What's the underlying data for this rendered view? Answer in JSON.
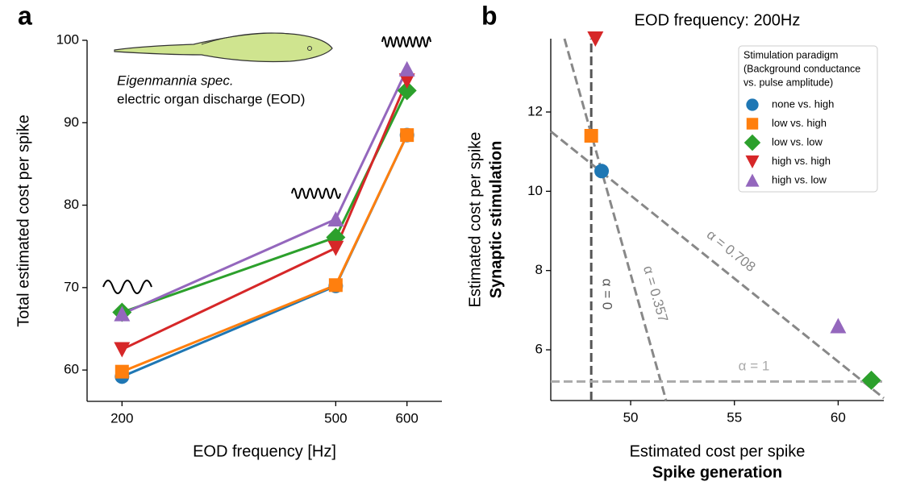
{
  "chart_data": [
    {
      "type": "line",
      "panel_label": "a",
      "xlabel": "EOD frequency [Hz]",
      "ylabel": "Total estimated cost per spike",
      "annotations": [
        "Eigenmannia spec.",
        "electric organ discharge (EOD)"
      ],
      "x": [
        200,
        500,
        600
      ],
      "xlim": [
        151,
        649
      ],
      "ylim": [
        56.2,
        100
      ],
      "xticks": [
        200,
        500,
        600
      ],
      "yticks": [
        60,
        70,
        80,
        90,
        100
      ],
      "grid": false,
      "series": [
        {
          "name": "none vs. high",
          "color": "#1f77b4",
          "marker": "o",
          "values": [
            59.2,
            70.2,
            88.5
          ]
        },
        {
          "name": "low vs. high",
          "color": "#ff7f0e",
          "marker": "s",
          "values": [
            59.8,
            70.3,
            88.5
          ]
        },
        {
          "name": "low vs. low",
          "color": "#2ca02c",
          "marker": "D",
          "values": [
            67.0,
            76.1,
            93.9
          ]
        },
        {
          "name": "high vs. high",
          "color": "#d62728",
          "marker": "v",
          "values": [
            62.5,
            74.8,
            95.1
          ]
        },
        {
          "name": "high vs. low",
          "color": "#9467bd",
          "marker": "^",
          "values": [
            66.8,
            78.3,
            96.5
          ]
        }
      ]
    },
    {
      "type": "scatter",
      "panel_label": "b",
      "title": "EOD frequency: 200Hz",
      "xlabel": [
        "Estimated cost per spike",
        "Spike generation"
      ],
      "ylabel": [
        "Estimated cost per spike",
        "Synaptic stimulation"
      ],
      "legend_title": [
        "Stimulation paradigm",
        "(Background conductance",
        "vs. pulse amplitude)"
      ],
      "legend": "upper right",
      "xlim": [
        46.15,
        62.2
      ],
      "ylim": [
        4.72,
        13.85
      ],
      "xticks": [
        50,
        55,
        60
      ],
      "yticks": [
        6,
        8,
        10,
        12
      ],
      "grid": false,
      "series": [
        {
          "name": "none vs. high",
          "color": "#1f77b4",
          "marker": "o",
          "x": [
            48.6
          ],
          "y": [
            10.51
          ]
        },
        {
          "name": "low vs. high",
          "color": "#ff7f0e",
          "marker": "s",
          "x": [
            48.1
          ],
          "y": [
            11.4
          ]
        },
        {
          "name": "low vs. low",
          "color": "#2ca02c",
          "marker": "D",
          "x": [
            61.6
          ],
          "y": [
            5.23
          ]
        },
        {
          "name": "high vs. high",
          "color": "#d62728",
          "marker": "v",
          "x": [
            48.3
          ],
          "y": [
            13.85
          ]
        },
        {
          "name": "high vs. low",
          "color": "#9467bd",
          "marker": "^",
          "x": [
            60.0
          ],
          "y": [
            6.6
          ]
        }
      ],
      "reference_lines": [
        {
          "label": "α = 0",
          "color": "#555555",
          "x": [
            48.1,
            48.1
          ],
          "y": [
            4.72,
            13.85
          ]
        },
        {
          "label": "α = 0.357",
          "color": "#888888",
          "x": [
            46.81,
            51.71
          ],
          "y": [
            13.85,
            4.72
          ]
        },
        {
          "label": "α = 0.708",
          "color": "#888888",
          "x": [
            46.15,
            62.2
          ],
          "y": [
            11.51,
            4.78
          ]
        },
        {
          "label": "α = 1",
          "color": "#aaaaaa",
          "x": [
            46.15,
            62.2
          ],
          "y": [
            5.2,
            5.2
          ]
        }
      ]
    }
  ]
}
